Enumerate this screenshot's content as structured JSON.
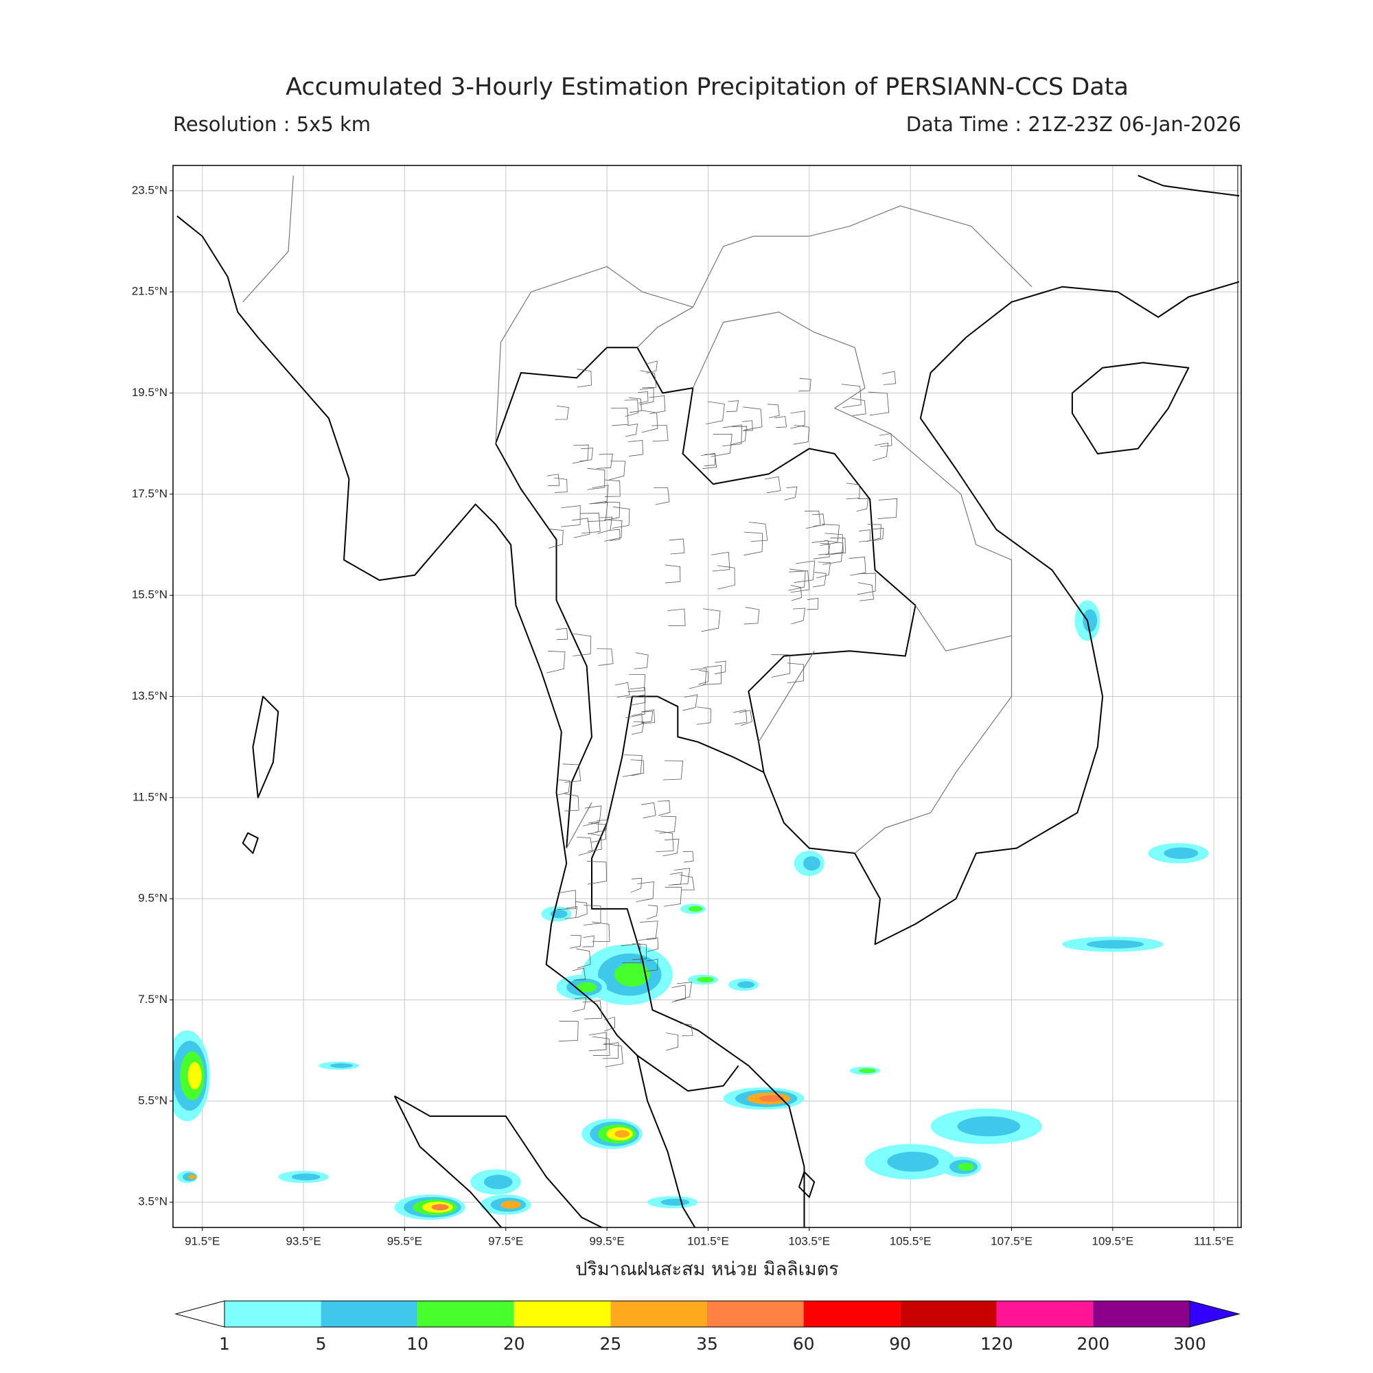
{
  "header": {
    "title": "Accumulated 3-Hourly Estimation Precipitation of PERSIANN-CCS Data",
    "resolution": "Resolution : 5x5 km",
    "data_time": "Data Time : 21Z-23Z 06-Jan-2026"
  },
  "map": {
    "lonlim": [
      90.92,
      112.04
    ],
    "latlim": [
      3.0,
      24.0
    ],
    "lat_ticks": [
      {
        "value": 23.5,
        "label": "23.5°N"
      },
      {
        "value": 21.5,
        "label": "21.5°N"
      },
      {
        "value": 19.5,
        "label": "19.5°N"
      },
      {
        "value": 17.5,
        "label": "17.5°N"
      },
      {
        "value": 15.5,
        "label": "15.5°N"
      },
      {
        "value": 13.5,
        "label": "13.5°N"
      },
      {
        "value": 11.5,
        "label": "11.5°N"
      },
      {
        "value": 9.5,
        "label": "9.5°N"
      },
      {
        "value": 7.5,
        "label": "7.5°N"
      },
      {
        "value": 5.5,
        "label": "5.5°N"
      },
      {
        "value": 3.5,
        "label": "3.5°N"
      }
    ],
    "lon_ticks": [
      {
        "value": 91.5,
        "label": "91.5°E"
      },
      {
        "value": 93.5,
        "label": "93.5°E"
      },
      {
        "value": 95.5,
        "label": "95.5°E"
      },
      {
        "value": 97.5,
        "label": "97.5°E"
      },
      {
        "value": 99.5,
        "label": "99.5°E"
      },
      {
        "value": 101.5,
        "label": "101.5°E"
      },
      {
        "value": 103.5,
        "label": "103.5°E"
      },
      {
        "value": 105.5,
        "label": "105.5°E"
      },
      {
        "value": 107.5,
        "label": "107.5°E"
      },
      {
        "value": 109.5,
        "label": "109.5°E"
      },
      {
        "value": 111.5,
        "label": "111.5°E"
      }
    ],
    "grid": true,
    "x_label": "ปริมาณฝนสะสม หน่วย มิลลิเมตร"
  },
  "colorbar": {
    "ticks": [
      1,
      5,
      10,
      20,
      25,
      35,
      60,
      90,
      120,
      200,
      300
    ],
    "colors": [
      "#80ffff",
      "#40c8ea",
      "#46ff2d",
      "#ffff00",
      "#ffaa1e",
      "#ff8040",
      "#ff0000",
      "#c80000",
      "#ff1493",
      "#8b008b"
    ],
    "under_color": "#ffffff",
    "over_color": "#3300ff"
  }
}
